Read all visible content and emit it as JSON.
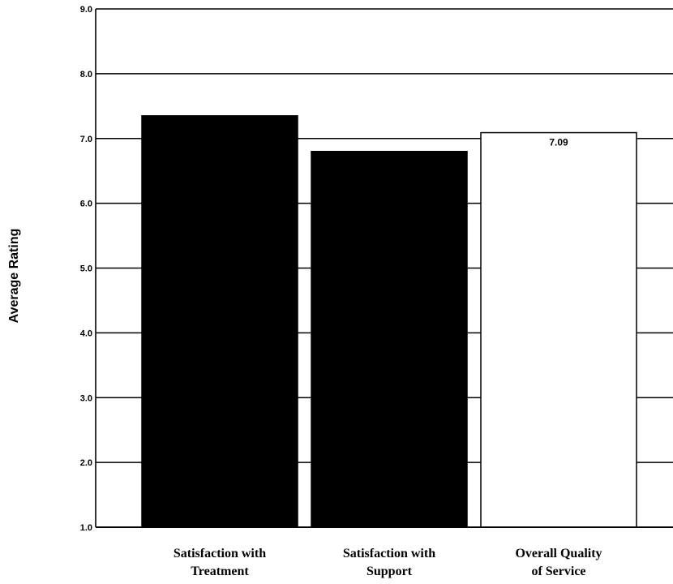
{
  "chart_data": {
    "type": "bar",
    "title": "",
    "xlabel": "",
    "ylabel": "Average Rating",
    "ylim": [
      1.0,
      9.0
    ],
    "yticks": [
      "1.0",
      "2.0",
      "3.0",
      "4.0",
      "5.0",
      "6.0",
      "7.0",
      "8.0",
      "9.0"
    ],
    "grid": true,
    "legend": "none",
    "categories": [
      [
        "Satisfaction with",
        "Treatment"
      ],
      [
        "Satisfaction with",
        "Support"
      ],
      [
        "Overall Quality",
        "of Service"
      ]
    ],
    "values": [
      7.35,
      6.8,
      7.09
    ],
    "data_labels": [
      "",
      "",
      "7.09"
    ],
    "bar_colors": [
      "#000000",
      "#000000",
      "#ffffff"
    ]
  }
}
